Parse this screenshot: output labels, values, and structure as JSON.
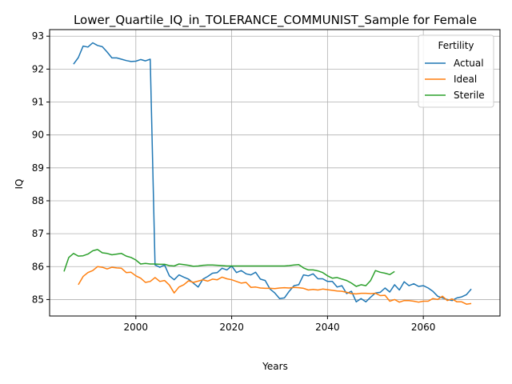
{
  "chart_data": {
    "type": "line",
    "title": "Lower_Quartile_IQ_in_TOLERANCE_COMMUNIST_Sample for Female",
    "xlabel": "Years",
    "ylabel": "IQ",
    "xlim": [
      1982,
      2076
    ],
    "ylim": [
      84.5,
      93.2
    ],
    "xticks": [
      2000,
      2020,
      2040,
      2060
    ],
    "yticks": [
      85,
      86,
      87,
      88,
      89,
      90,
      91,
      92,
      93
    ],
    "grid": true,
    "legend": {
      "title": "Fertility",
      "placement": "top-right"
    },
    "series": [
      {
        "name": "Actual",
        "color": "#1f77b4",
        "x": [
          1987,
          1988,
          1989,
          1990,
          1991,
          1992,
          1993,
          1994,
          1995,
          1996,
          1997,
          1998,
          1999,
          2000,
          2001,
          2002,
          2003,
          2004,
          2005,
          2006,
          2007,
          2008,
          2009,
          2010,
          2011,
          2012,
          2013,
          2014,
          2015,
          2016,
          2017,
          2018,
          2019,
          2020,
          2021,
          2022,
          2023,
          2024,
          2025,
          2026,
          2027,
          2028,
          2029,
          2030,
          2031,
          2032,
          2033,
          2034,
          2035,
          2036,
          2037,
          2038,
          2039,
          2040,
          2041,
          2042,
          2043,
          2044,
          2045,
          2046,
          2047,
          2048,
          2049,
          2050,
          2051,
          2052,
          2053,
          2054,
          2055,
          2056,
          2057,
          2058,
          2059,
          2060,
          2061,
          2062,
          2063,
          2064,
          2065,
          2066,
          2067,
          2068,
          2069,
          2070
        ],
        "values": [
          92.15,
          92.35,
          92.7,
          92.67,
          92.8,
          92.72,
          92.68,
          92.52,
          92.34,
          92.34,
          92.3,
          92.26,
          92.23,
          92.24,
          92.29,
          92.25,
          92.3,
          86.05,
          85.98,
          86.05,
          85.72,
          85.6,
          85.75,
          85.68,
          85.62,
          85.5,
          85.38,
          85.62,
          85.7,
          85.8,
          85.82,
          85.95,
          85.9,
          86.02,
          85.82,
          85.88,
          85.78,
          85.75,
          85.83,
          85.62,
          85.58,
          85.32,
          85.2,
          85.03,
          85.05,
          85.25,
          85.42,
          85.45,
          85.75,
          85.72,
          85.78,
          85.63,
          85.63,
          85.55,
          85.55,
          85.38,
          85.42,
          85.18,
          85.25,
          84.93,
          85.03,
          84.93,
          85.07,
          85.2,
          85.22,
          85.35,
          85.23,
          85.45,
          85.29,
          85.54,
          85.42,
          85.48,
          85.4,
          85.42,
          85.35,
          85.25,
          85.1,
          85.05,
          85.0,
          84.97,
          85.05,
          85.08,
          85.15,
          85.32
        ]
      },
      {
        "name": "Ideal",
        "color": "#ff7f0e",
        "x": [
          1988,
          1989,
          1990,
          1991,
          1992,
          1993,
          1994,
          1995,
          1996,
          1997,
          1998,
          1999,
          2000,
          2001,
          2002,
          2003,
          2004,
          2005,
          2006,
          2007,
          2008,
          2009,
          2010,
          2011,
          2012,
          2013,
          2014,
          2015,
          2016,
          2017,
          2018,
          2019,
          2020,
          2021,
          2022,
          2023,
          2024,
          2025,
          2026,
          2027,
          2028,
          2029,
          2030,
          2031,
          2032,
          2033,
          2034,
          2035,
          2036,
          2037,
          2038,
          2039,
          2040,
          2041,
          2042,
          2043,
          2044,
          2045,
          2046,
          2047,
          2048,
          2049,
          2050,
          2051,
          2052,
          2053,
          2054,
          2055,
          2056,
          2057,
          2058,
          2059,
          2060,
          2061,
          2062,
          2063,
          2064,
          2065,
          2066,
          2067,
          2068,
          2069,
          2070
        ],
        "values": [
          85.45,
          85.7,
          85.82,
          85.88,
          86.0,
          85.98,
          85.93,
          85.98,
          85.96,
          85.95,
          85.82,
          85.83,
          85.72,
          85.65,
          85.52,
          85.55,
          85.67,
          85.55,
          85.58,
          85.44,
          85.2,
          85.38,
          85.45,
          85.57,
          85.52,
          85.56,
          85.6,
          85.56,
          85.62,
          85.6,
          85.68,
          85.63,
          85.6,
          85.55,
          85.5,
          85.52,
          85.37,
          85.38,
          85.35,
          85.34,
          85.34,
          85.33,
          85.35,
          85.36,
          85.35,
          85.37,
          85.36,
          85.34,
          85.29,
          85.31,
          85.29,
          85.32,
          85.3,
          85.28,
          85.26,
          85.25,
          85.22,
          85.18,
          85.17,
          85.19,
          85.19,
          85.18,
          85.19,
          85.12,
          85.13,
          84.95,
          85.0,
          84.92,
          84.97,
          84.97,
          84.95,
          84.92,
          84.95,
          84.95,
          85.03,
          85.0,
          85.1,
          84.97,
          85.02,
          84.93,
          84.93,
          84.86,
          84.88
        ]
      },
      {
        "name": "Sterile",
        "color": "#2ca02c",
        "x": [
          1985,
          1986,
          1987,
          1988,
          1989,
          1990,
          1991,
          1992,
          1993,
          1994,
          1995,
          1996,
          1997,
          1998,
          1999,
          2000,
          2001,
          2002,
          2003,
          2004,
          2005,
          2006,
          2007,
          2008,
          2009,
          2010,
          2011,
          2012,
          2013,
          2014,
          2015,
          2016,
          2017,
          2018,
          2019,
          2020,
          2021,
          2022,
          2023,
          2024,
          2025,
          2026,
          2027,
          2028,
          2029,
          2030,
          2031,
          2032,
          2033,
          2034,
          2035,
          2036,
          2037,
          2038,
          2039,
          2040,
          2041,
          2042,
          2043,
          2044,
          2045,
          2046,
          2047,
          2048,
          2049,
          2050,
          2051,
          2052,
          2053,
          2054
        ],
        "values": [
          85.85,
          86.28,
          86.4,
          86.32,
          86.33,
          86.38,
          86.48,
          86.52,
          86.42,
          86.4,
          86.36,
          86.38,
          86.4,
          86.32,
          86.28,
          86.2,
          86.08,
          86.1,
          86.08,
          86.08,
          86.07,
          86.07,
          86.03,
          86.02,
          86.08,
          86.06,
          86.04,
          86.01,
          86.02,
          86.04,
          86.05,
          86.05,
          86.04,
          86.03,
          86.02,
          86.02,
          86.02,
          86.02,
          86.02,
          86.02,
          86.02,
          86.02,
          86.02,
          86.02,
          86.02,
          86.02,
          86.02,
          86.03,
          86.05,
          86.06,
          85.96,
          85.9,
          85.9,
          85.87,
          85.82,
          85.72,
          85.65,
          85.67,
          85.62,
          85.58,
          85.5,
          85.4,
          85.45,
          85.42,
          85.58,
          85.88,
          85.83,
          85.8,
          85.76,
          85.85
        ]
      }
    ]
  }
}
